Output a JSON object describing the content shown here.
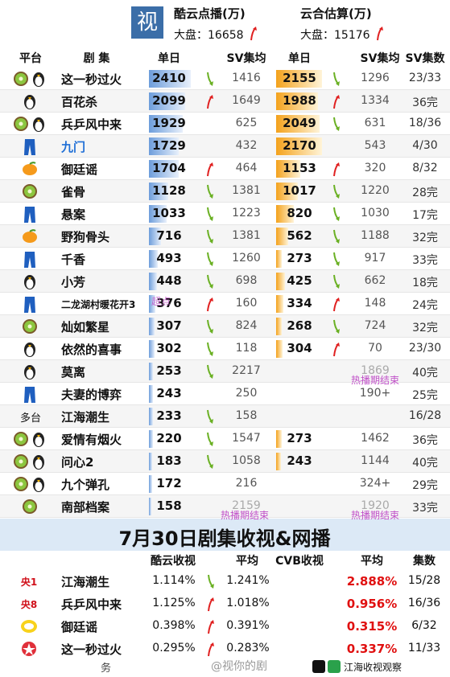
{
  "header": {
    "logo": "视",
    "kuyun_title": "酷云点播(万)",
    "kuyun_total": "大盘：16658",
    "kuyun_trend": "up",
    "yunhe_title": "云合估算(万)",
    "yunhe_total": "大盘：15176",
    "yunhe_trend": "up"
  },
  "columns": [
    "平台",
    "剧 集",
    "单日",
    "SV集均",
    "单日",
    "SV集均",
    "SV集数"
  ],
  "rows": [
    {
      "platform": null,
      "name": "这一秒过火",
      "k_daily": 2410,
      "k_trend": "down",
      "k_sv": 1416,
      "y_daily": 2155,
      "y_trend": "down",
      "y_sv": 1296,
      "episodes": "23/33"
    },
    {
      "platform": null,
      "name": "百花杀",
      "k_daily": 2099,
      "k_trend": "up",
      "k_sv": 1649,
      "y_daily": 1988,
      "y_trend": "up",
      "y_sv": 1334,
      "episodes": "36完"
    },
    {
      "platform": null,
      "name": "兵乒风中来",
      "k_daily": 1929,
      "k_trend": null,
      "k_sv": 625,
      "y_daily": 2049,
      "y_trend": "down",
      "y_sv": 631,
      "episodes": "18/36"
    },
    {
      "platform": null,
      "name": "九门",
      "name_color": "#1f6fd6",
      "k_daily": 1729,
      "k_trend": null,
      "k_sv": 432,
      "y_daily": 2170,
      "y_trend": null,
      "y_sv": 543,
      "episodes": "4/30"
    },
    {
      "platform": null,
      "name": "御廷谣",
      "k_daily": 1704,
      "k_trend": "up",
      "k_sv": 464,
      "y_daily": 1153,
      "y_trend": "up",
      "y_sv": 320,
      "episodes": "8/32"
    },
    {
      "platform": null,
      "name": "雀骨",
      "k_daily": 1128,
      "k_trend": "down",
      "k_sv": 1381,
      "y_daily": 1017,
      "y_trend": "down",
      "y_sv": 1220,
      "episodes": "28完"
    },
    {
      "platform": null,
      "name": "悬案",
      "k_daily": 1033,
      "k_trend": "down",
      "k_sv": 1223,
      "y_daily": 820,
      "y_trend": "down",
      "y_sv": 1030,
      "episodes": "17完"
    },
    {
      "platform": null,
      "name": "野狗骨头",
      "k_daily": 716,
      "k_trend": "down",
      "k_sv": 1381,
      "y_daily": 562,
      "y_trend": "down",
      "y_sv": 1188,
      "episodes": "32完"
    },
    {
      "platform": null,
      "name": "千香",
      "k_daily": 493,
      "k_trend": "down",
      "k_sv": 1260,
      "y_daily": 273,
      "y_trend": "down",
      "y_sv": 917,
      "episodes": "33完"
    },
    {
      "platform": null,
      "name": "小芳",
      "k_daily": 448,
      "k_trend": "down",
      "k_sv": 698,
      "y_daily": 425,
      "y_trend": "down",
      "y_sv": 662,
      "episodes": "18完"
    },
    {
      "platform": null,
      "name": "二龙湖村暖花开3",
      "k_note": "超点",
      "k_daily": 376,
      "k_trend": "up",
      "k_sv": 160,
      "y_daily": 334,
      "y_trend": "up",
      "y_sv": 148,
      "episodes": "24完"
    },
    {
      "platform": null,
      "name": "灿如繁星",
      "k_daily": 307,
      "k_trend": "down",
      "k_sv": 824,
      "y_daily": 268,
      "y_trend": "down",
      "y_sv": 724,
      "episodes": "32完"
    },
    {
      "platform": null,
      "name": "依然的喜事",
      "k_daily": 302,
      "k_trend": "down",
      "k_sv": 118,
      "y_daily": 304,
      "y_trend": "up",
      "y_sv": 70,
      "episodes": "23/30"
    },
    {
      "platform": null,
      "name": "莫离",
      "k_daily": 253,
      "k_trend": "down",
      "k_sv": 2217,
      "y_daily": null,
      "y_trend": null,
      "y_sv": 1869,
      "y_faded": true,
      "y_note": "热播期结束",
      "episodes": "40完"
    },
    {
      "platform": null,
      "name": "夫妻的博弈",
      "k_daily": 243,
      "k_trend": null,
      "k_sv": 250,
      "y_daily": null,
      "y_trend": null,
      "y_sv": "190+",
      "episodes": "25完"
    },
    {
      "platform": "多台",
      "name": "江海潮生",
      "k_daily": 233,
      "k_trend": "down",
      "k_sv": 158,
      "y_daily": null,
      "y_trend": null,
      "y_sv": null,
      "episodes": "16/28"
    },
    {
      "platform": null,
      "name": "爱情有烟火",
      "k_daily": 220,
      "k_trend": "down",
      "k_sv": 1547,
      "y_daily": 273,
      "y_trend": null,
      "y_sv": 1462,
      "episodes": "36完"
    },
    {
      "platform": null,
      "name": "问心2",
      "k_daily": 183,
      "k_trend": "down",
      "k_sv": 1058,
      "y_daily": 243,
      "y_trend": null,
      "y_sv": 1144,
      "episodes": "40完"
    },
    {
      "platform": null,
      "name": "九个弹孔",
      "k_daily": 172,
      "k_trend": null,
      "k_sv": 216,
      "y_daily": null,
      "y_trend": null,
      "y_sv": "324+",
      "episodes": "29完"
    },
    {
      "platform": null,
      "name": "南部档案",
      "k_daily": 158,
      "k_trend": null,
      "k_sv": 2159,
      "k_faded": true,
      "k_note": "热播期结束",
      "y_daily": null,
      "y_trend": null,
      "y_sv": 1920,
      "y_faded": true,
      "y_note": "热播期结束",
      "episodes": "33完"
    }
  ],
  "banner": "7月30日剧集收视&网播",
  "tv_columns": [
    "酷云收视",
    "平均",
    "CVB收视",
    "平均",
    "集数"
  ],
  "tv_rows": [
    {
      "channel": "央1",
      "name": "江海潮生",
      "kuyun": "1.114%",
      "trend": "down",
      "kuyun_avg": "1.241%",
      "cvb_avg": "2.888%",
      "episodes": "15/28"
    },
    {
      "channel": "央8",
      "name": "兵乒风中来",
      "kuyun": "1.125%",
      "trend": "up",
      "kuyun_avg": "1.018%",
      "cvb_avg": "0.956%",
      "episodes": "16/36"
    },
    {
      "channel": null,
      "name": "御廷谣",
      "kuyun": "0.398%",
      "trend": "up",
      "kuyun_avg": "0.391%",
      "cvb_avg": "0.315%",
      "episodes": "6/32"
    },
    {
      "channel": null,
      "name": "这一秒过火",
      "kuyun": "0.295%",
      "trend": "up",
      "kuyun_avg": "0.283%",
      "cvb_avg": "0.337%",
      "episodes": "11/33"
    }
  ],
  "footer": {
    "left": "务",
    "watermark": "@视你的剧",
    "source": "江海收视观察"
  }
}
